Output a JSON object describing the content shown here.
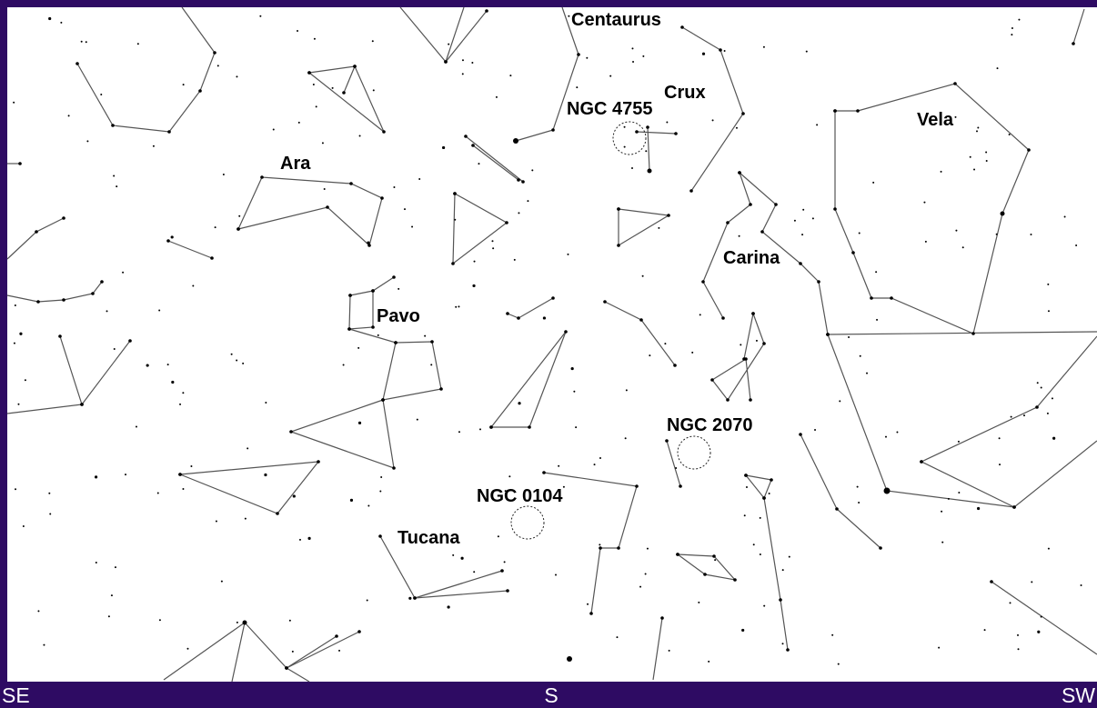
{
  "constellations": [
    "Centaurus",
    "Crux",
    "Vela",
    "Ara",
    "Carina",
    "Pavo",
    "Tucana"
  ],
  "deep_sky_objects": [
    "NGC 4755",
    "NGC 2070",
    "NGC 0104"
  ],
  "directions": [
    "SE",
    "S",
    "SW"
  ]
}
